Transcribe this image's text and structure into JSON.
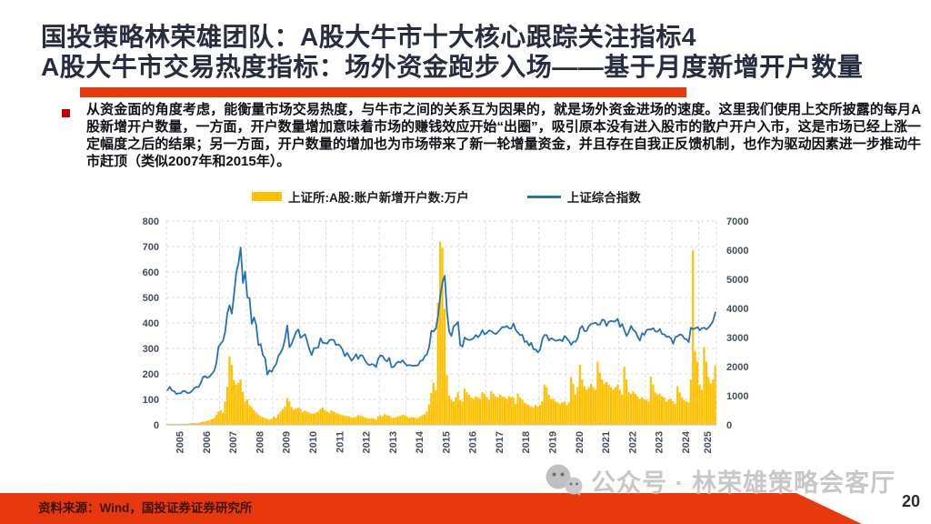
{
  "header": {
    "line1": "国投策略林荣雄团队：A股大牛市十大核心跟踪关注指标4",
    "line2": "A股大牛市交易热度指标：场外资金跑步入场——基于月度新增开户数量"
  },
  "bullet_paragraph": "从资金面的角度考虑，能衡量市场交易热度，与牛市之间的关系互为因果的，就是场外资金进场的速度。这里我们使用上交所披露的每月A股新增开户数量，一方面，开户数量增加意味着市场的赚钱效应开始“出圈”，吸引原本没有进入股市的散户开户入市，这是市场已经上涨一定幅度之后的结果；另一方面，开户数量的增加也为市场带来了新一轮增量资金，并且存在自我正反馈机制，也作为驱动因素进一步推动牛市赶顶（类似2007年和2015年）。",
  "chart_data": {
    "type": "combo-bar-line",
    "start_year": 2005,
    "years": [
      2005,
      2006,
      2007,
      2008,
      2009,
      2010,
      2011,
      2012,
      2013,
      2014,
      2015,
      2016,
      2017,
      2018,
      2019,
      2020,
      2021,
      2022,
      2023,
      2024,
      2025
    ],
    "left_axis": {
      "label_implied": "新增开户数(万户)",
      "min": 0,
      "max": 800,
      "ticks": [
        0,
        100,
        200,
        300,
        400,
        500,
        600,
        700,
        800
      ]
    },
    "right_axis": {
      "label_implied": "上证综合指数",
      "min": 0,
      "max": 7000,
      "ticks": [
        0,
        1000,
        2000,
        3000,
        4000,
        5000,
        6000,
        7000
      ]
    },
    "grid": "dashed",
    "legend_position": "top-center",
    "series": [
      {
        "name": "上证所:A股:账户新增开户数:万户",
        "type": "bar",
        "axis": "left",
        "color": "#ffc000",
        "monthly_by_year": [
          [
            3,
            3,
            4,
            4,
            3,
            3,
            4,
            4,
            5,
            4,
            5,
            7
          ],
          [
            7,
            6,
            8,
            10,
            12,
            14,
            16,
            18,
            22,
            26,
            38,
            52
          ],
          [
            58,
            48,
            92,
            150,
            270,
            235,
            175,
            158,
            165,
            178,
            130,
            92
          ],
          [
            100,
            78,
            70,
            58,
            48,
            40,
            34,
            30,
            27,
            24,
            21,
            24
          ],
          [
            33,
            28,
            42,
            52,
            62,
            72,
            105,
            92,
            70,
            60,
            64,
            68
          ],
          [
            62,
            50,
            56,
            52,
            48,
            44,
            44,
            48,
            52,
            62,
            68,
            58
          ],
          [
            52,
            48,
            58,
            52,
            48,
            44,
            40,
            38,
            36,
            34,
            33,
            28
          ],
          [
            28,
            32,
            38,
            36,
            33,
            29,
            27,
            24,
            26,
            24,
            21,
            33
          ],
          [
            38,
            33,
            42,
            38,
            36,
            29,
            27,
            30,
            33,
            36,
            40,
            38
          ],
          [
            33,
            28,
            30,
            29,
            27,
            27,
            33,
            38,
            42,
            52,
            80,
            125
          ],
          [
            165,
            135,
            480,
            720,
            695,
            455,
            195,
            115,
            98,
            92,
            108,
            128
          ],
          [
            98,
            92,
            142,
            128,
            118,
            108,
            102,
            112,
            108,
            102,
            128,
            122
          ],
          [
            108,
            98,
            132,
            122,
            112,
            108,
            118,
            112,
            108,
            102,
            112,
            108
          ],
          [
            108,
            82,
            122,
            108,
            98,
            88,
            82,
            78,
            72,
            68,
            78,
            72
          ],
          [
            78,
            92,
            158,
            148,
            118,
            102,
            102,
            92,
            88,
            82,
            88,
            92
          ],
          [
            78,
            88,
            188,
            162,
            118,
            148,
            236,
            178,
            152,
            138,
            148,
            162
          ],
          [
            148,
            138,
            248,
            206,
            178,
            162,
            168,
            158,
            148,
            138,
            148,
            158
          ],
          [
            138,
            118,
            228,
            178,
            128,
            122,
            132,
            122,
            112,
            102,
            108,
            102
          ],
          [
            98,
            92,
            188,
            158,
            128,
            118,
            122,
            112,
            108,
            92,
            98,
            102
          ],
          [
            92,
            82,
            152,
            128,
            108,
            98,
            92,
            88,
            178,
            685,
            288,
            248
          ],
          [
            158,
            138,
            305,
            248,
            188,
            162,
            178,
            232
          ]
        ]
      },
      {
        "name": "上证综合指数",
        "type": "line",
        "axis": "right",
        "color": "#2272b5",
        "monthly_by_year": [
          [
            1191,
            1306,
            1181,
            1159,
            1060,
            1081,
            1083,
            1162,
            1155,
            1092,
            1099,
            1161
          ],
          [
            1258,
            1299,
            1298,
            1440,
            1641,
            1672,
            1612,
            1658,
            1752,
            1837,
            2099,
            2675
          ],
          [
            2786,
            2881,
            3183,
            3841,
            4109,
            3820,
            4471,
            5218,
            5552,
            6092,
            4871,
            5262
          ],
          [
            4383,
            4348,
            3472,
            3693,
            3433,
            2736,
            2775,
            2397,
            2294,
            1729,
            1871,
            1821
          ],
          [
            1991,
            2083,
            2373,
            2478,
            2633,
            2959,
            3412,
            2668,
            2780,
            2995,
            3195,
            3277
          ],
          [
            2989,
            3052,
            3109,
            2871,
            2592,
            2398,
            2638,
            2639,
            2656,
            2979,
            2820,
            2808
          ],
          [
            2790,
            2905,
            2928,
            2911,
            2743,
            2762,
            2701,
            2567,
            2359,
            2468,
            2333,
            2199
          ],
          [
            2293,
            2428,
            2262,
            2396,
            2372,
            2225,
            2103,
            2047,
            2086,
            2068,
            1980,
            2269
          ],
          [
            2385,
            2365,
            2236,
            2177,
            2300,
            1979,
            1993,
            2098,
            2175,
            2141,
            2220,
            2116
          ],
          [
            2033,
            2056,
            2033,
            2026,
            2039,
            2048,
            2201,
            2217,
            2363,
            2420,
            2683,
            3235
          ],
          [
            3210,
            3310,
            3748,
            4442,
            4900,
            5120,
            3900,
            3206,
            3053,
            3383,
            3445,
            3539
          ],
          [
            2738,
            2688,
            3004,
            2938,
            2917,
            2930,
            2979,
            3085,
            3005,
            3100,
            3250,
            3104
          ],
          [
            3159,
            3242,
            3223,
            3155,
            3117,
            3192,
            3273,
            3361,
            3349,
            3393,
            3317,
            3307
          ],
          [
            3481,
            3259,
            3169,
            3082,
            3095,
            2847,
            2876,
            2725,
            2821,
            2603,
            2588,
            2494
          ],
          [
            2585,
            2941,
            3090,
            3078,
            2899,
            2979,
            2933,
            2886,
            2905,
            2929,
            2872,
            3050
          ],
          [
            2977,
            2880,
            2750,
            2860,
            2852,
            2985,
            3310,
            3396,
            3218,
            3225,
            3392,
            3473
          ],
          [
            3483,
            3509,
            3442,
            3447,
            3615,
            3591,
            3397,
            3544,
            3568,
            3547,
            3564,
            3640
          ],
          [
            3361,
            3462,
            3252,
            3047,
            3186,
            3399,
            3253,
            3202,
            3024,
            2893,
            3151,
            3089
          ],
          [
            3256,
            3280,
            3273,
            3323,
            3205,
            3202,
            3291,
            3120,
            3110,
            3019,
            3030,
            2975
          ],
          [
            2789,
            3015,
            3041,
            3105,
            3087,
            2967,
            2939,
            2842,
            3336,
            3280,
            3326,
            3352
          ],
          [
            3251,
            3321,
            3336,
            3279,
            3347,
            3444,
            3573,
            3858
          ]
        ]
      }
    ]
  },
  "watermark": {
    "text": "公众号 · 林荣雄策略会客厅",
    "icon": "wechat-icon"
  },
  "footer": {
    "source": "资料来源：Wind，国投证券证券研究所",
    "page_number": "20"
  },
  "colors": {
    "title_text": "#272c3e",
    "accent_red": "#e8380d",
    "bullet_red": "#c00000",
    "bar_yellow": "#ffc000",
    "line_blue": "#2272b5",
    "gridline": "#d9d9d9",
    "tick_text": "#454c5e",
    "watermark_gray": "#c2c2c2"
  }
}
